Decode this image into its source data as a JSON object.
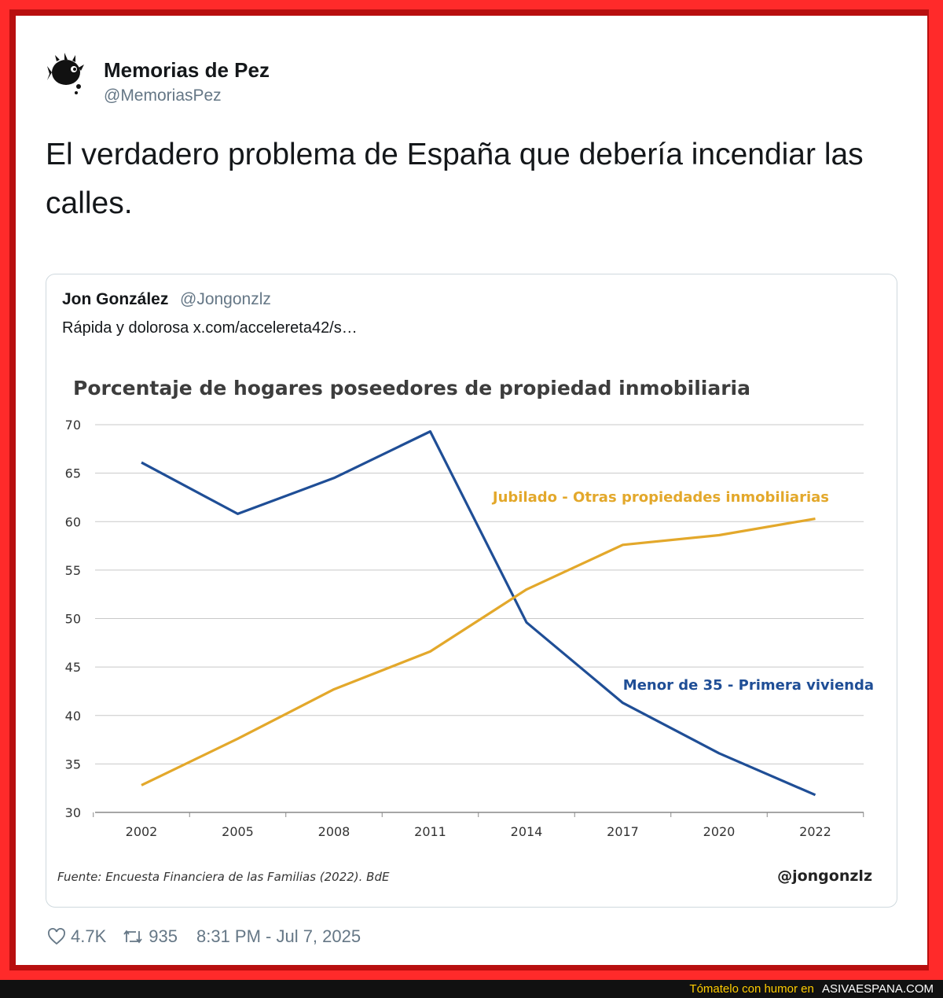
{
  "tweet": {
    "author_name": "Memorias de Pez",
    "author_handle": "@MemoriasPez",
    "text": "El verdadero problema de España que debería incendiar las calles.",
    "likes": "4.7K",
    "retweets": "935",
    "timestamp": "8:31 PM - Jul 7, 2025",
    "icons": {
      "avatar": "pufferfish-avatar",
      "like": "heart-icon",
      "retweet": "retweet-icon"
    }
  },
  "quoted": {
    "author_name": "Jon González",
    "author_handle": "@Jongonzlz",
    "text": "Rápida y dolorosa x.com/accelereta42/s…"
  },
  "chart_data": {
    "type": "line",
    "title": "Porcentaje de hogares poseedores de propiedad inmobiliaria",
    "x": [
      "2002",
      "2005",
      "2008",
      "2011",
      "2014",
      "2017",
      "2020",
      "2022"
    ],
    "yticks": [
      30,
      35,
      40,
      45,
      50,
      55,
      60,
      65,
      70
    ],
    "ylim": [
      30,
      70
    ],
    "grid": true,
    "series": [
      {
        "name": "Menor de 35 - Primera vivienda",
        "color": "#1f4e96",
        "values": [
          66.1,
          60.8,
          64.5,
          69.3,
          49.6,
          41.3,
          36.1,
          31.8
        ]
      },
      {
        "name": "Jubilado - Otras propiedades inmobiliarias",
        "color": "#e3a82b",
        "values": [
          32.8,
          37.6,
          42.7,
          46.6,
          53.0,
          57.6,
          58.6,
          60.3
        ]
      }
    ],
    "source": "Fuente: Encuesta Financiera de las Familias (2022). BdE",
    "watermark": "@jongonzlz"
  },
  "bottom_bar": {
    "text": "Tómatelo con humor en ",
    "site": "ASIVAESPANA.COM"
  }
}
